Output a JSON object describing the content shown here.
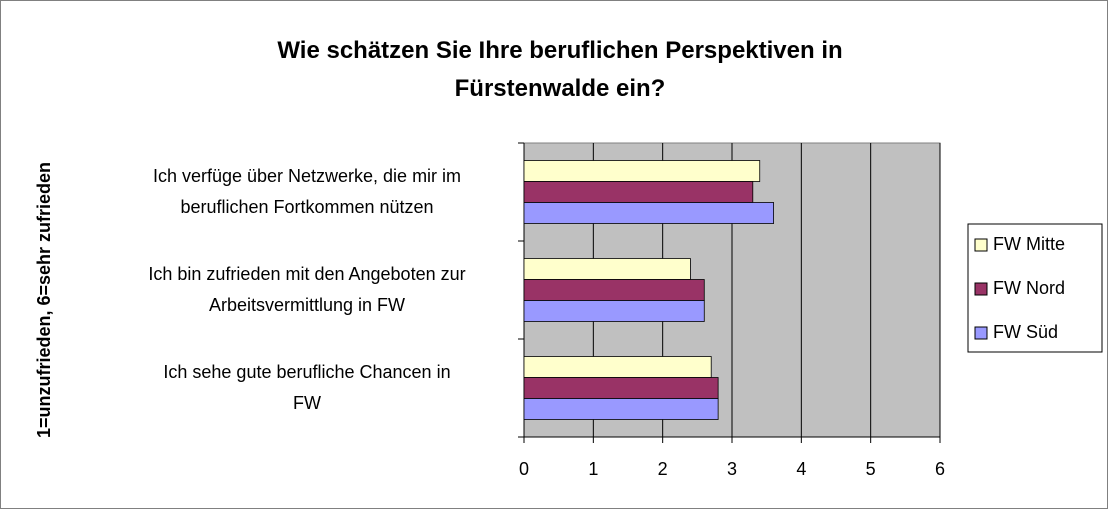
{
  "chart_data": {
    "type": "barh",
    "title": "Wie schätzen Sie Ihre beruflichen Perspektiven in\nFürstenwalde ein?",
    "y_label": "1=unzufrieden, 6=sehr zufrieden",
    "categories": [
      "Ich verfüge über Netzwerke, die mir im\nberuflichen Fortkommen nützen",
      "Ich bin zufrieden mit den Angeboten zur\nArbeitsvermittlung in FW",
      "Ich sehe gute berufliche Chancen in\nFW"
    ],
    "series": [
      {
        "name": "FW Mitte",
        "color": "#ffffcc",
        "values": [
          3.4,
          2.4,
          2.7
        ]
      },
      {
        "name": "FW Nord",
        "color": "#993366",
        "values": [
          3.3,
          2.6,
          2.8
        ]
      },
      {
        "name": "FW Süd",
        "color": "#9999ff",
        "values": [
          3.6,
          2.6,
          2.8
        ]
      }
    ],
    "xlim": [
      0,
      6
    ],
    "xticks": [
      0,
      1,
      2,
      3,
      4,
      5,
      6
    ],
    "grid": true,
    "plot_background": "#c0c0c0",
    "legend": "right"
  }
}
